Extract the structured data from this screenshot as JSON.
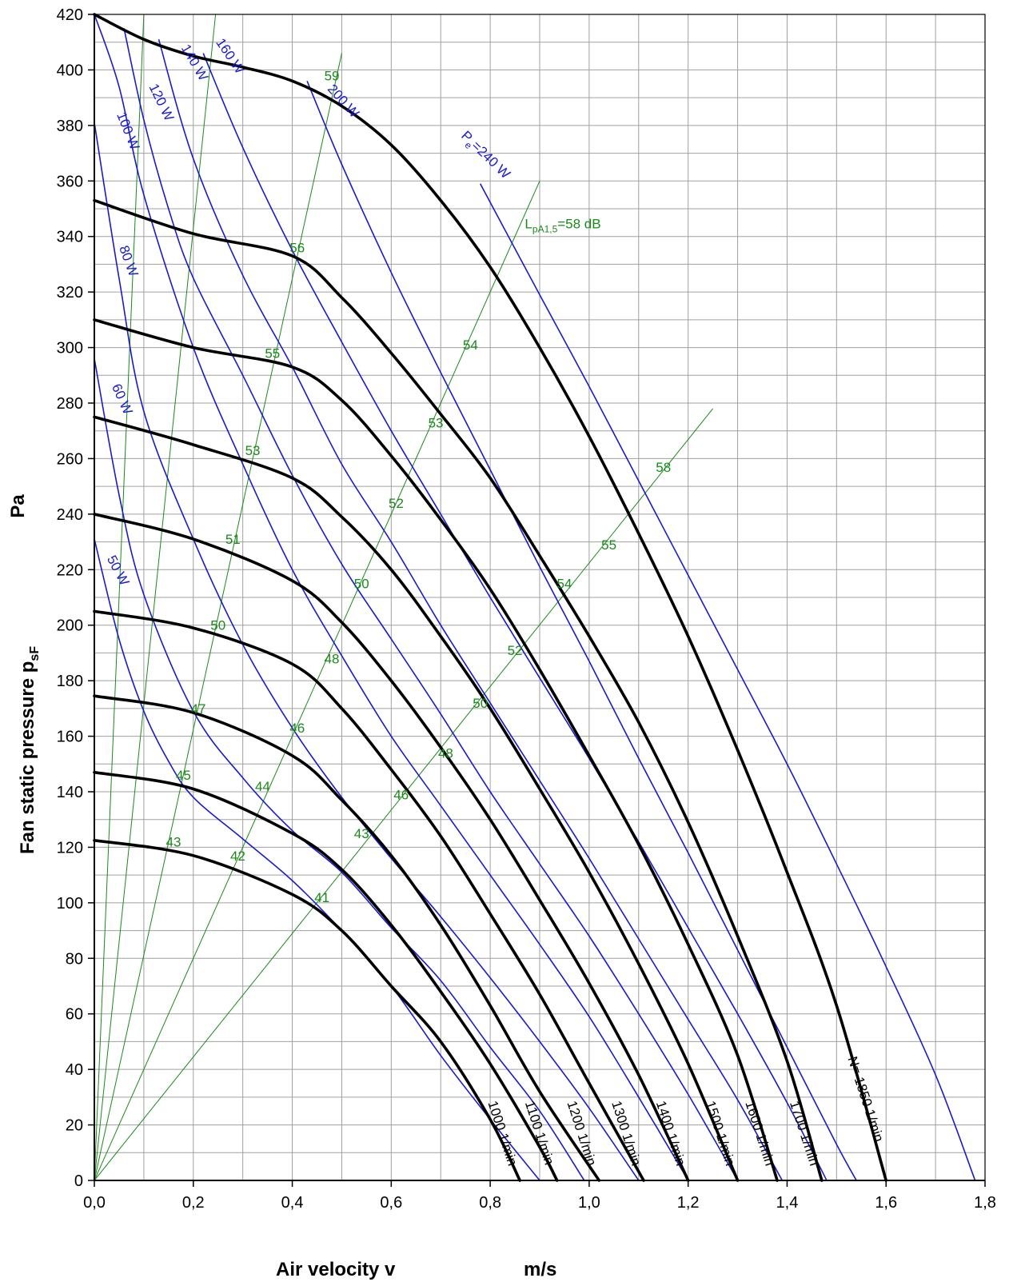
{
  "colors": {
    "rpm_curve": "#000000",
    "power_curve": "#1a1acc",
    "sound_line": "#1a8a1a",
    "grid": "#a0a0a0",
    "background": "#ffffff"
  },
  "chart_data": {
    "type": "line",
    "xlabel": "Air velocity v",
    "xunit": "m/s",
    "ylabel_main": "Fan static pressure p",
    "ylabel_sub": "sF",
    "ylabel_unit": "Pa",
    "xlim": [
      0,
      1.8
    ],
    "ylim": [
      0,
      420
    ],
    "grid": true,
    "x_ticks": [
      "0,0",
      "0,2",
      "0,4",
      "0,6",
      "0,8",
      "1,0",
      "1,2",
      "1,4",
      "1,6",
      "1,8"
    ],
    "y_ticks": [
      "0",
      "20",
      "40",
      "60",
      "80",
      "100",
      "120",
      "140",
      "160",
      "180",
      "200",
      "220",
      "240",
      "260",
      "280",
      "300",
      "320",
      "340",
      "360",
      "380",
      "400",
      "420"
    ],
    "x_minor_step": 0.1,
    "y_minor_step": 10,
    "rpm_curves": [
      {
        "label": "1000 1/min",
        "points": [
          [
            0,
            122.5
          ],
          [
            0.2,
            117
          ],
          [
            0.4,
            103
          ],
          [
            0.5,
            90
          ],
          [
            0.6,
            70
          ],
          [
            0.7,
            50
          ],
          [
            0.8,
            22
          ],
          [
            0.86,
            0
          ]
        ]
      },
      {
        "label": "1100 1/min",
        "points": [
          [
            0,
            147
          ],
          [
            0.2,
            141
          ],
          [
            0.4,
            125
          ],
          [
            0.5,
            112
          ],
          [
            0.6,
            92
          ],
          [
            0.7,
            68
          ],
          [
            0.8,
            42
          ],
          [
            0.9,
            12
          ],
          [
            0.935,
            0
          ]
        ]
      },
      {
        "label": "1200 1/min",
        "points": [
          [
            0,
            174.5
          ],
          [
            0.2,
            168.5
          ],
          [
            0.4,
            153
          ],
          [
            0.5,
            137
          ],
          [
            0.6,
            117
          ],
          [
            0.7,
            92
          ],
          [
            0.8,
            63
          ],
          [
            0.9,
            32
          ],
          [
            1.02,
            0
          ]
        ]
      },
      {
        "label": "1300 1/min",
        "points": [
          [
            0,
            205
          ],
          [
            0.2,
            199
          ],
          [
            0.4,
            186
          ],
          [
            0.5,
            170
          ],
          [
            0.6,
            148
          ],
          [
            0.7,
            124
          ],
          [
            0.8,
            96
          ],
          [
            0.9,
            67
          ],
          [
            1.0,
            35
          ],
          [
            1.11,
            0
          ]
        ]
      },
      {
        "label": "1400 1/min",
        "points": [
          [
            0,
            240
          ],
          [
            0.2,
            231
          ],
          [
            0.4,
            216
          ],
          [
            0.5,
            201
          ],
          [
            0.6,
            180
          ],
          [
            0.7,
            156
          ],
          [
            0.8,
            130
          ],
          [
            0.9,
            101
          ],
          [
            1.0,
            71
          ],
          [
            1.1,
            38
          ],
          [
            1.2,
            0
          ]
        ]
      },
      {
        "label": "1500 1/min",
        "points": [
          [
            0,
            275
          ],
          [
            0.2,
            265
          ],
          [
            0.4,
            253
          ],
          [
            0.5,
            239
          ],
          [
            0.6,
            220
          ],
          [
            0.7,
            196
          ],
          [
            0.8,
            170
          ],
          [
            0.9,
            141
          ],
          [
            1.0,
            111
          ],
          [
            1.1,
            78
          ],
          [
            1.2,
            42
          ],
          [
            1.3,
            0
          ]
        ]
      },
      {
        "label": "1600 1/min",
        "points": [
          [
            0,
            310
          ],
          [
            0.2,
            300
          ],
          [
            0.4,
            293
          ],
          [
            0.5,
            281
          ],
          [
            0.6,
            261
          ],
          [
            0.7,
            238
          ],
          [
            0.8,
            213
          ],
          [
            0.9,
            184
          ],
          [
            1.0,
            153
          ],
          [
            1.1,
            121
          ],
          [
            1.2,
            85
          ],
          [
            1.3,
            45
          ],
          [
            1.38,
            0
          ]
        ]
      },
      {
        "label": "1700 1/min",
        "points": [
          [
            0,
            353
          ],
          [
            0.2,
            341
          ],
          [
            0.4,
            333
          ],
          [
            0.5,
            318
          ],
          [
            0.6,
            298
          ],
          [
            0.7,
            276
          ],
          [
            0.8,
            253
          ],
          [
            0.9,
            225
          ],
          [
            1.0,
            196
          ],
          [
            1.1,
            165
          ],
          [
            1.2,
            129
          ],
          [
            1.3,
            88
          ],
          [
            1.4,
            43
          ],
          [
            1.47,
            0
          ]
        ]
      },
      {
        "label": "N= 1850 1/min",
        "points": [
          [
            0,
            420
          ],
          [
            0.1,
            411
          ],
          [
            0.2,
            405
          ],
          [
            0.3,
            401
          ],
          [
            0.4,
            396
          ],
          [
            0.5,
            387
          ],
          [
            0.6,
            373
          ],
          [
            0.7,
            353
          ],
          [
            0.8,
            329
          ],
          [
            0.9,
            300
          ],
          [
            1.0,
            268
          ],
          [
            1.1,
            233
          ],
          [
            1.2,
            196
          ],
          [
            1.3,
            155
          ],
          [
            1.4,
            111
          ],
          [
            1.5,
            63
          ],
          [
            1.6,
            0
          ]
        ]
      }
    ],
    "power_curves": [
      {
        "label": "50 W",
        "points": [
          [
            0,
            231
          ],
          [
            0.05,
            195
          ],
          [
            0.1,
            169
          ],
          [
            0.15,
            151
          ],
          [
            0.2,
            138
          ],
          [
            0.3,
            123
          ],
          [
            0.4,
            108
          ],
          [
            0.5,
            90
          ],
          [
            0.6,
            70
          ],
          [
            0.7,
            45
          ],
          [
            0.8,
            22
          ],
          [
            0.9,
            0
          ]
        ]
      },
      {
        "label": "60 W",
        "points": [
          [
            0,
            296
          ],
          [
            0.05,
            247
          ],
          [
            0.1,
            211
          ],
          [
            0.2,
            169
          ],
          [
            0.3,
            145
          ],
          [
            0.4,
            126
          ],
          [
            0.5,
            111
          ],
          [
            0.6,
            91
          ],
          [
            0.7,
            72
          ],
          [
            0.8,
            48
          ],
          [
            0.9,
            25
          ],
          [
            0.99,
            0
          ]
        ]
      },
      {
        "label": "80 W",
        "points": [
          [
            0,
            381
          ],
          [
            0.05,
            325
          ],
          [
            0.1,
            277
          ],
          [
            0.2,
            231
          ],
          [
            0.3,
            193
          ],
          [
            0.4,
            163
          ],
          [
            0.5,
            138
          ],
          [
            0.6,
            116
          ],
          [
            0.7,
            95
          ],
          [
            0.8,
            73
          ],
          [
            0.9,
            50
          ],
          [
            1.0,
            26
          ],
          [
            1.1,
            0
          ]
        ]
      },
      {
        "label": "100 W",
        "points": [
          [
            0,
            420
          ],
          [
            0.05,
            394
          ],
          [
            0.1,
            355
          ],
          [
            0.2,
            300
          ],
          [
            0.3,
            258
          ],
          [
            0.4,
            220
          ],
          [
            0.5,
            189
          ],
          [
            0.6,
            160
          ],
          [
            0.7,
            135
          ],
          [
            0.8,
            110
          ],
          [
            0.9,
            85
          ],
          [
            1.0,
            59
          ],
          [
            1.1,
            30
          ],
          [
            1.2,
            0
          ]
        ]
      },
      {
        "label": "120 W",
        "points": [
          [
            0.06,
            415
          ],
          [
            0.1,
            382
          ],
          [
            0.15,
            350
          ],
          [
            0.2,
            325
          ],
          [
            0.3,
            290
          ],
          [
            0.4,
            254
          ],
          [
            0.5,
            222
          ],
          [
            0.6,
            195
          ],
          [
            0.7,
            168
          ],
          [
            0.8,
            140
          ],
          [
            0.9,
            114
          ],
          [
            1.0,
            88
          ],
          [
            1.1,
            60
          ],
          [
            1.2,
            31
          ],
          [
            1.3,
            0
          ]
        ]
      },
      {
        "label": "140 W",
        "points": [
          [
            0.13,
            411
          ],
          [
            0.2,
            368
          ],
          [
            0.3,
            326
          ],
          [
            0.4,
            293
          ],
          [
            0.5,
            258
          ],
          [
            0.6,
            230
          ],
          [
            0.7,
            200
          ],
          [
            0.8,
            172
          ],
          [
            0.9,
            144
          ],
          [
            1.0,
            116
          ],
          [
            1.1,
            87
          ],
          [
            1.2,
            58
          ],
          [
            1.3,
            29
          ],
          [
            1.39,
            0
          ]
        ]
      },
      {
        "label": "160 W",
        "points": [
          [
            0.22,
            406
          ],
          [
            0.3,
            372
          ],
          [
            0.4,
            335
          ],
          [
            0.5,
            302
          ],
          [
            0.6,
            270
          ],
          [
            0.7,
            240
          ],
          [
            0.8,
            210
          ],
          [
            0.9,
            181
          ],
          [
            1.0,
            152
          ],
          [
            1.1,
            122
          ],
          [
            1.2,
            91
          ],
          [
            1.3,
            60
          ],
          [
            1.4,
            28
          ],
          [
            1.48,
            0
          ]
        ]
      },
      {
        "label": "200 W",
        "points": [
          [
            0.43,
            396
          ],
          [
            0.5,
            366
          ],
          [
            0.6,
            327
          ],
          [
            0.7,
            291
          ],
          [
            0.8,
            256
          ],
          [
            0.9,
            221
          ],
          [
            1.0,
            187
          ],
          [
            1.1,
            152
          ],
          [
            1.2,
            118
          ],
          [
            1.3,
            83
          ],
          [
            1.4,
            48
          ],
          [
            1.5,
            13
          ],
          [
            1.54,
            0
          ]
        ]
      },
      {
        "label": "P",
        "label_sub": "e",
        "label_rest": "=240 W",
        "points": [
          [
            0.78,
            359
          ],
          [
            0.9,
            319
          ],
          [
            1.0,
            286
          ],
          [
            1.1,
            252
          ],
          [
            1.2,
            218
          ],
          [
            1.3,
            184
          ],
          [
            1.4,
            150
          ],
          [
            1.5,
            114
          ],
          [
            1.6,
            77
          ],
          [
            1.7,
            38
          ],
          [
            1.78,
            0
          ]
        ]
      }
    ],
    "sound_lines": [
      {
        "end": [
          0.1,
          420
        ]
      },
      {
        "end": [
          0.245,
          420
        ]
      },
      {
        "end": [
          0.5,
          406
        ]
      },
      {
        "end": [
          0.9,
          360
        ],
        "label": "L",
        "label_sub": "pA1,5",
        "label_rest": "=58 dB"
      },
      {
        "end": [
          1.25,
          278
        ]
      }
    ],
    "sound_labels": [
      {
        "text": "43",
        "x": 0.16,
        "y": 122
      },
      {
        "text": "45",
        "x": 0.18,
        "y": 146
      },
      {
        "text": "47",
        "x": 0.21,
        "y": 170
      },
      {
        "text": "50",
        "x": 0.25,
        "y": 200
      },
      {
        "text": "51",
        "x": 0.28,
        "y": 231
      },
      {
        "text": "53",
        "x": 0.32,
        "y": 263
      },
      {
        "text": "55",
        "x": 0.36,
        "y": 298
      },
      {
        "text": "56",
        "x": 0.41,
        "y": 336
      },
      {
        "text": "59",
        "x": 0.48,
        "y": 398
      },
      {
        "text": "42",
        "x": 0.29,
        "y": 117
      },
      {
        "text": "44",
        "x": 0.34,
        "y": 142
      },
      {
        "text": "46",
        "x": 0.41,
        "y": 163
      },
      {
        "text": "48",
        "x": 0.48,
        "y": 188
      },
      {
        "text": "50",
        "x": 0.54,
        "y": 215
      },
      {
        "text": "52",
        "x": 0.61,
        "y": 244
      },
      {
        "text": "53",
        "x": 0.69,
        "y": 273
      },
      {
        "text": "54",
        "x": 0.76,
        "y": 301
      },
      {
        "text": "41",
        "x": 0.46,
        "y": 102
      },
      {
        "text": "43",
        "x": 0.54,
        "y": 125
      },
      {
        "text": "46",
        "x": 0.62,
        "y": 139
      },
      {
        "text": "48",
        "x": 0.71,
        "y": 154
      },
      {
        "text": "50",
        "x": 0.78,
        "y": 172
      },
      {
        "text": "52",
        "x": 0.85,
        "y": 191
      },
      {
        "text": "54",
        "x": 0.95,
        "y": 215
      },
      {
        "text": "55",
        "x": 1.04,
        "y": 229
      },
      {
        "text": "58",
        "x": 1.15,
        "y": 257
      }
    ]
  }
}
